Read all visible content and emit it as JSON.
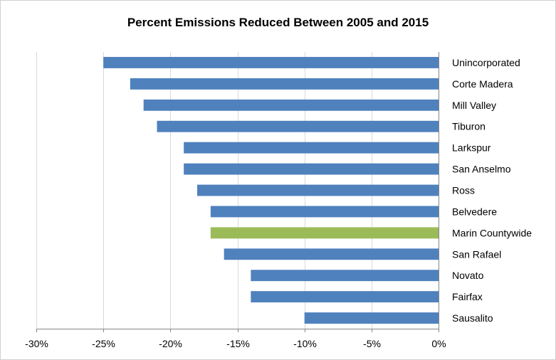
{
  "chart_data": {
    "type": "bar",
    "orientation": "horizontal",
    "title": "Percent Emissions Reduced Between 2005 and 2015",
    "xlabel": "",
    "ylabel": "",
    "categories": [
      "Unincorporated",
      "Corte Madera",
      "Mill Valley",
      "Tiburon",
      "Larkspur",
      "San Anselmo",
      "Ross",
      "Belvedere",
      "Marin Countywide",
      "San Rafael",
      "Novato",
      "Fairfax",
      "Sausalito"
    ],
    "values": [
      -25,
      -23,
      -22,
      -21,
      -19,
      -19,
      -18,
      -17,
      -17,
      -16,
      -14,
      -14,
      -10
    ],
    "highlight_category": "Marin Countywide",
    "bar_color": "#4f81bd",
    "highlight_color": "#9bbb59",
    "xlim": [
      -30,
      0
    ],
    "xticks": [
      -30,
      -25,
      -20,
      -15,
      -10,
      -5,
      0
    ],
    "xtick_labels": [
      "-30%",
      "-25%",
      "-20%",
      "-15%",
      "-10%",
      "-5%",
      "0%"
    ],
    "grid": "vertical",
    "grid_color": "#d9d9d9",
    "legend": "none"
  }
}
